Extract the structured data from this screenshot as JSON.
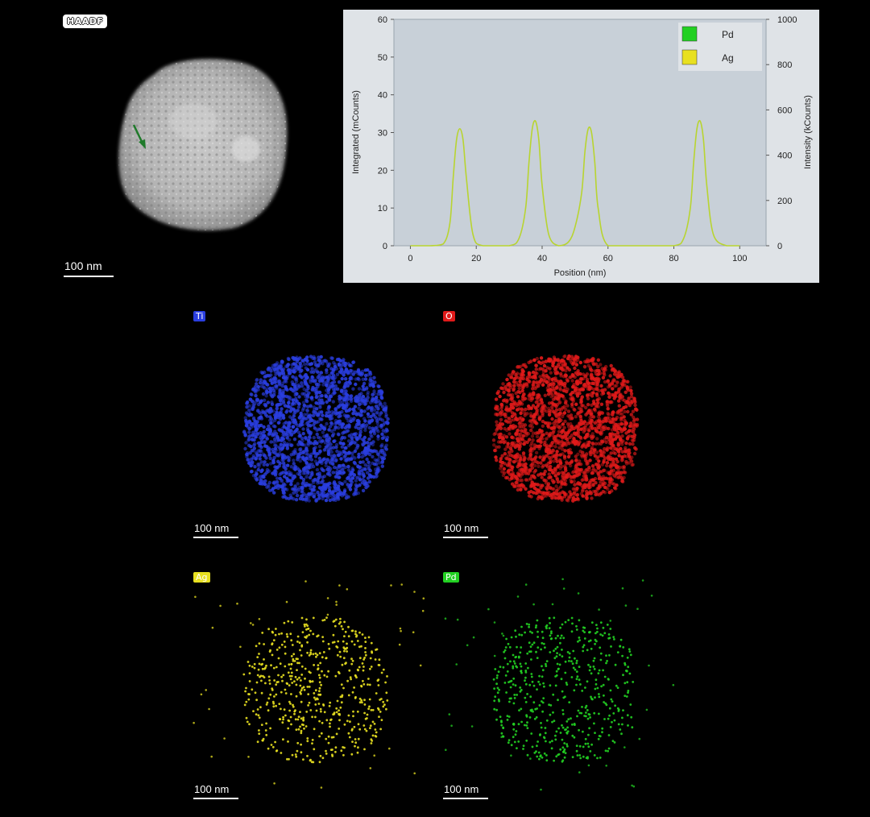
{
  "haadf": {
    "label": "HAADF",
    "scale_label": "100 nm"
  },
  "maps": [
    {
      "element": "Ti",
      "color": "#2a3ee0",
      "label_bg": "#2a3ee0",
      "scale_label": "100 nm"
    },
    {
      "element": "O",
      "color": "#e01a1a",
      "label_bg": "#e01a1a",
      "scale_label": "100 nm"
    },
    {
      "element": "Ag",
      "color": "#e8e020",
      "label_bg": "#e8e020",
      "scale_label": "100 nm"
    },
    {
      "element": "Pd",
      "color": "#22d022",
      "label_bg": "#22d022",
      "scale_label": "100 nm"
    }
  ],
  "chart_data": {
    "type": "line",
    "xlabel": "Position (nm)",
    "ylabel": "Integrated (mCounts)",
    "y2label": "Intensity (kCounts)",
    "xlim": [
      -5,
      108
    ],
    "ylim": [
      0,
      60
    ],
    "y2lim": [
      0,
      1000
    ],
    "xticks": [
      0,
      20,
      40,
      60,
      80,
      100
    ],
    "yticks": [
      0,
      10,
      20,
      30,
      40,
      50,
      60
    ],
    "y2ticks": [
      0,
      200,
      400,
      600,
      800,
      1000
    ],
    "legend": {
      "placement": "top-right",
      "entries": [
        {
          "name": "Pd",
          "color": "#22d022"
        },
        {
          "name": "Ag",
          "color": "#e8e020"
        }
      ]
    },
    "series": [
      {
        "name": "Ag",
        "color": "#b8d430",
        "x": [
          0,
          6,
          10,
          12,
          13,
          14,
          15,
          16,
          17,
          19,
          22,
          30,
          33,
          35,
          36,
          37,
          38,
          39,
          40,
          42,
          45,
          48,
          50,
          52,
          53,
          54,
          55,
          56,
          57,
          60,
          70,
          80,
          83,
          85,
          86,
          87,
          88,
          89,
          90,
          92,
          96,
          100
        ],
        "values": [
          0,
          0,
          0.5,
          6,
          18,
          28,
          31,
          28,
          18,
          3,
          0,
          0,
          2,
          10,
          22,
          31,
          33,
          28,
          16,
          3,
          0,
          1,
          5,
          14,
          25,
          31,
          30,
          22,
          10,
          0,
          0,
          0,
          2,
          10,
          22,
          31,
          33,
          28,
          16,
          3,
          0,
          0
        ]
      }
    ],
    "background": "#c8d0d8"
  }
}
